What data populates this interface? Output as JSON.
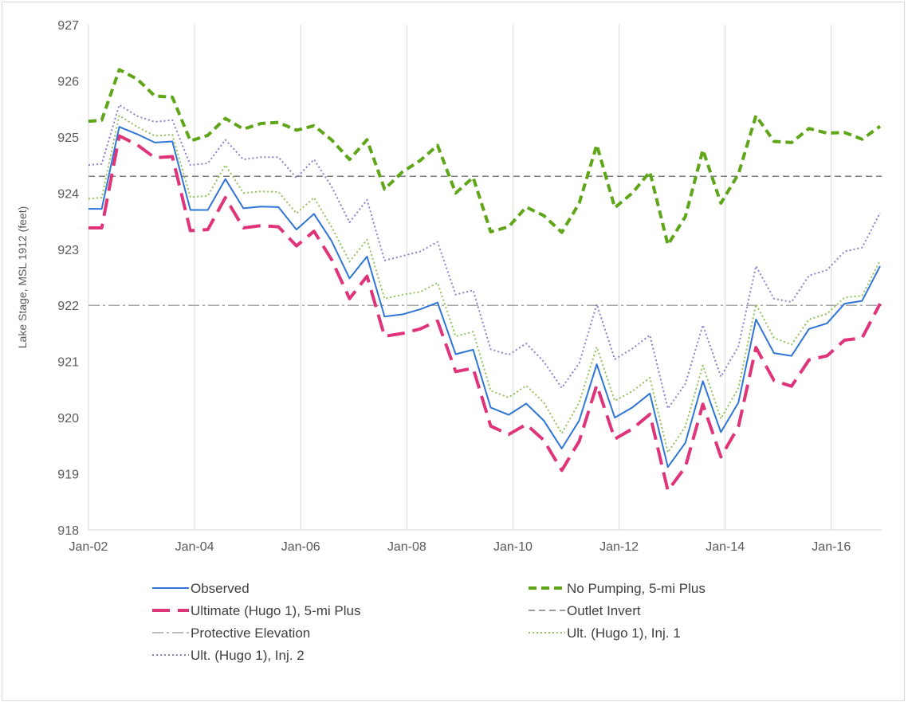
{
  "chart_data": {
    "type": "line",
    "ylabel": "Lake Stage, MSL 1912 (feet)",
    "ylim": [
      918,
      927
    ],
    "yticks": [
      "918",
      "919",
      "920",
      "921",
      "922",
      "923",
      "924",
      "925",
      "926",
      "927"
    ],
    "xlim": [
      2002.0,
      2016.95
    ],
    "xticks": [
      {
        "label": "Jan-02",
        "value": 2002
      },
      {
        "label": "Jan-04",
        "value": 2004
      },
      {
        "label": "Jan-06",
        "value": 2006
      },
      {
        "label": "Jan-08",
        "value": 2008
      },
      {
        "label": "Jan-10",
        "value": 2010
      },
      {
        "label": "Jan-12",
        "value": 2012
      },
      {
        "label": "Jan-14",
        "value": 2014
      },
      {
        "label": "Jan-16",
        "value": 2016
      }
    ],
    "grid": "vertical",
    "legend_position": "bottom",
    "x": [
      2002.0,
      2002.25,
      2002.58,
      2002.92,
      2003.25,
      2003.58,
      2003.92,
      2004.25,
      2004.58,
      2004.92,
      2005.25,
      2005.58,
      2005.92,
      2006.25,
      2006.58,
      2006.92,
      2007.25,
      2007.58,
      2007.92,
      2008.25,
      2008.58,
      2008.92,
      2009.25,
      2009.58,
      2009.92,
      2010.25,
      2010.58,
      2010.92,
      2011.25,
      2011.58,
      2011.92,
      2012.25,
      2012.58,
      2012.92,
      2013.25,
      2013.58,
      2013.92,
      2014.25,
      2014.58,
      2014.92,
      2015.25,
      2015.58,
      2015.92,
      2016.25,
      2016.58,
      2016.92
    ],
    "series": [
      {
        "name": "Observed",
        "color": "#2e75d6",
        "dash": "solid",
        "width": 2,
        "values": [
          923.72,
          923.72,
          925.18,
          925.05,
          924.9,
          924.92,
          923.7,
          923.7,
          924.25,
          923.73,
          923.76,
          923.75,
          923.35,
          923.63,
          923.15,
          922.48,
          922.87,
          921.8,
          921.84,
          921.93,
          922.05,
          921.13,
          921.21,
          920.18,
          920.05,
          920.25,
          919.95,
          919.45,
          919.95,
          920.95,
          920.0,
          920.18,
          920.43,
          919.12,
          919.55,
          920.65,
          919.74,
          920.27,
          921.75,
          921.15,
          921.1,
          921.58,
          921.68,
          922.03,
          922.08,
          922.7
        ]
      },
      {
        "name": "No Pumping, 5-mi Plus",
        "color": "#5ea618",
        "dash": "10 6",
        "width": 4,
        "values": [
          925.28,
          925.3,
          926.2,
          926.03,
          925.73,
          925.71,
          924.93,
          925.03,
          925.33,
          925.14,
          925.24,
          925.26,
          925.12,
          925.2,
          924.95,
          924.6,
          924.95,
          924.07,
          924.38,
          924.58,
          924.85,
          924.0,
          924.28,
          923.31,
          923.4,
          923.75,
          923.6,
          923.3,
          923.82,
          924.86,
          923.74,
          924.0,
          924.38,
          923.08,
          923.58,
          924.77,
          923.82,
          924.34,
          925.38,
          924.92,
          924.9,
          925.15,
          925.07,
          925.08,
          924.96,
          925.19
        ]
      },
      {
        "name": "Ultimate (Hugo 1), 5-mi Plus",
        "color": "#e0347a",
        "dash": "22 10",
        "width": 4,
        "values": [
          923.38,
          923.38,
          925.02,
          924.86,
          924.63,
          924.65,
          923.33,
          923.35,
          923.92,
          923.38,
          923.42,
          923.4,
          923.06,
          923.32,
          922.82,
          922.12,
          922.52,
          921.45,
          921.5,
          921.58,
          921.72,
          920.82,
          920.88,
          919.85,
          919.7,
          919.88,
          919.6,
          919.06,
          919.58,
          920.58,
          919.62,
          919.8,
          920.06,
          918.7,
          919.12,
          920.24,
          919.3,
          919.84,
          921.25,
          920.66,
          920.56,
          921.03,
          921.1,
          921.38,
          921.42,
          922.03
        ]
      },
      {
        "name": "Outlet Invert",
        "color": "#7f7f7f",
        "dash": "8 5",
        "width": 1.5,
        "constant": 924.3
      },
      {
        "name": "Protective Elevation",
        "color": "#a6a6a6",
        "dash": "14 4 3 4",
        "width": 1.5,
        "constant": 922.0
      },
      {
        "name": "Ult. (Hugo 1), Inj. 1",
        "color": "#92c25a",
        "dash": "2 3",
        "width": 2,
        "values": [
          923.9,
          923.92,
          925.38,
          925.18,
          925.02,
          925.04,
          923.93,
          923.95,
          924.5,
          924.0,
          924.03,
          924.02,
          923.64,
          923.92,
          923.4,
          922.78,
          923.17,
          922.12,
          922.19,
          922.24,
          922.4,
          921.45,
          921.53,
          920.48,
          920.36,
          920.57,
          920.27,
          919.72,
          920.27,
          921.26,
          920.3,
          920.47,
          920.71,
          919.38,
          919.84,
          920.93,
          919.98,
          920.53,
          922.02,
          921.42,
          921.3,
          921.75,
          921.85,
          922.14,
          922.17,
          922.8
        ]
      },
      {
        "name": "Ult. (Hugo 1), Inj. 2",
        "color": "#8f7fc8",
        "dash": "2 3",
        "width": 2,
        "values": [
          924.5,
          924.52,
          925.57,
          925.37,
          925.27,
          925.3,
          924.5,
          924.53,
          924.95,
          924.6,
          924.64,
          924.64,
          924.27,
          924.6,
          924.12,
          923.48,
          923.88,
          922.8,
          922.88,
          922.96,
          923.13,
          922.19,
          922.27,
          921.22,
          921.12,
          921.32,
          921.0,
          920.53,
          920.97,
          922.02,
          921.04,
          921.23,
          921.47,
          920.16,
          920.6,
          921.65,
          920.73,
          921.27,
          922.7,
          922.12,
          922.06,
          922.53,
          922.63,
          922.96,
          923.03,
          923.65
        ]
      }
    ],
    "legend": [
      {
        "label": "Observed",
        "series": 0
      },
      {
        "label": "No Pumping, 5-mi Plus",
        "series": 1
      },
      {
        "label": "Ultimate (Hugo 1), 5-mi Plus",
        "series": 2
      },
      {
        "label": "Outlet Invert",
        "series": 3
      },
      {
        "label": "Protective Elevation",
        "series": 4
      },
      {
        "label": "Ult. (Hugo 1), Inj. 1",
        "series": 5
      },
      {
        "label": "Ult. (Hugo 1), Inj. 2",
        "series": 6
      }
    ]
  }
}
